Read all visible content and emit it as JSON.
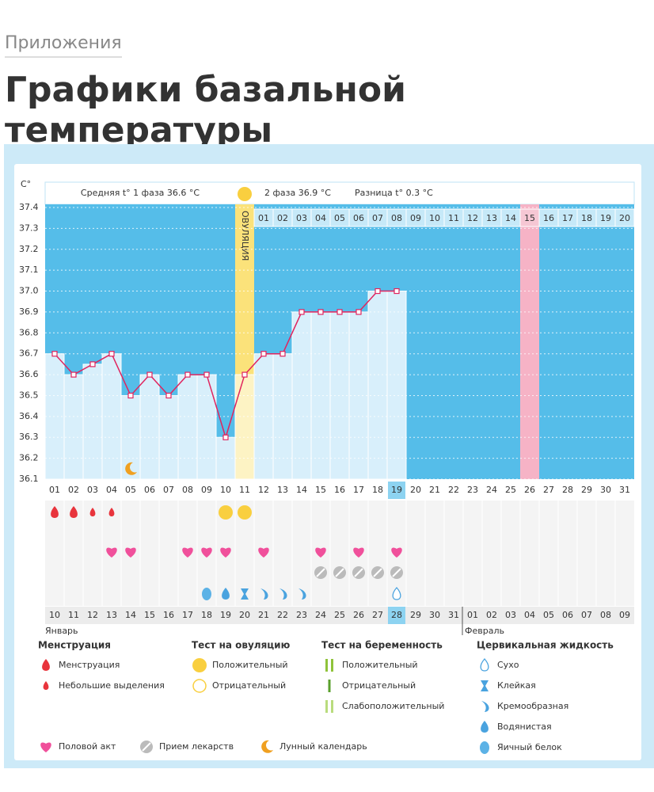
{
  "header": {
    "section": "Приложения",
    "title": "Графики базальной температуры"
  },
  "chart_data": {
    "type": "line",
    "y_unit": "C°",
    "phase1_summary": "Средняя t° 1 фаза 36.6 °C",
    "phase2_summary": "2 фаза 36.9 °C",
    "difference": "Разница t° 0.3 °C",
    "ovulation_label": "ОВУЛЯЦИЯ",
    "ovulation_day": "11",
    "phase2_days": [
      "01",
      "02",
      "03",
      "04",
      "05",
      "06",
      "07",
      "08",
      "09",
      "10",
      "11",
      "12",
      "13",
      "14",
      "15",
      "16",
      "17",
      "18",
      "19",
      "20"
    ],
    "marked_day": "15",
    "categories": [
      "01",
      "02",
      "03",
      "04",
      "05",
      "06",
      "07",
      "08",
      "09",
      "10",
      "11",
      "12",
      "13",
      "14",
      "15",
      "16",
      "17",
      "18",
      "19",
      "20",
      "21",
      "22",
      "23",
      "24",
      "25",
      "26",
      "27",
      "28",
      "29",
      "30",
      "31"
    ],
    "today": "19",
    "series": [
      {
        "color": "#e0245e",
        "values": [
          36.7,
          36.6,
          36.65,
          36.7,
          36.5,
          36.6,
          36.5,
          36.6,
          36.6,
          36.3,
          36.6,
          36.7,
          36.7,
          36.9,
          36.9,
          36.9,
          36.9,
          37.0,
          37.0,
          null,
          null,
          null,
          null,
          null,
          null,
          null,
          null,
          null,
          null,
          null,
          null
        ]
      }
    ],
    "ylim": [
      36.1,
      37.4
    ],
    "yticks": [
      37.4,
      37.3,
      37.2,
      37.1,
      {
        "value": 37,
        "label": "37.0"
      },
      36.9,
      36.8,
      36.7,
      36.6,
      36.5,
      36.4,
      36.3,
      36.2,
      36.1
    ],
    "grid": true,
    "dates": [
      "10",
      "11",
      "12",
      {
        "label": "13",
        "color": "#e0245e"
      },
      {
        "label": "14",
        "color": "#e0245e"
      },
      "15",
      "16",
      "17",
      "18",
      "19",
      {
        "label": "20",
        "color": "#e0245e"
      },
      {
        "label": "21",
        "color": "#e0245e"
      },
      "22",
      "23",
      "24",
      "25",
      "26",
      {
        "label": "27",
        "color": "#e0245e"
      },
      "28",
      "29",
      "30",
      "31",
      "01",
      "02",
      {
        "label": "03",
        "color": "#e0245e"
      },
      {
        "label": "04",
        "color": "#e0245e"
      },
      "05",
      "06",
      "07",
      "08",
      "09"
    ],
    "months": [
      "Январь",
      "Февраль"
    ],
    "legend": [
      {
        "title": "Менструация",
        "items": [
          {
            "label": "Менструация",
            "days": [
              "01",
              "02"
            ]
          },
          {
            "label": "Небольшие выделения",
            "days": [
              "03",
              "04"
            ]
          }
        ]
      },
      {
        "title": "Тест на овуляцию",
        "items": [
          {
            "label": "Положительный",
            "days": [
              "10",
              "11"
            ]
          },
          {
            "label": "Отрицательный",
            "days": []
          }
        ]
      },
      {
        "title": "Тест на беременность",
        "items": [
          {
            "label": "Положительный",
            "days": []
          },
          {
            "label": "Отрицательный",
            "days": []
          },
          {
            "label": "Слабоположительный",
            "days": []
          }
        ]
      },
      {
        "title": "Цервикальная жидкость",
        "items": [
          {
            "label": "Сухо",
            "days": [
              "19"
            ]
          },
          {
            "label": "Клейкая",
            "days": [
              "11"
            ]
          },
          {
            "label": "Кремообразная",
            "days": [
              "12",
              "13",
              "14"
            ]
          },
          {
            "label": "Водянистая",
            "days": [
              "10"
            ]
          },
          {
            "label": "Яичный белок",
            "days": [
              "09"
            ]
          }
        ]
      },
      {
        "items": [
          {
            "label": "Половой акт",
            "days": [
              "04",
              "05",
              "08",
              "09",
              "10",
              "12",
              "15",
              "17",
              "19"
            ]
          },
          {
            "label": "Прием лекарств",
            "days": [
              "15",
              "16",
              "17",
              "18",
              "19"
            ]
          },
          {
            "label": "Лунный календарь",
            "days": [
              "05"
            ]
          }
        ]
      }
    ]
  }
}
